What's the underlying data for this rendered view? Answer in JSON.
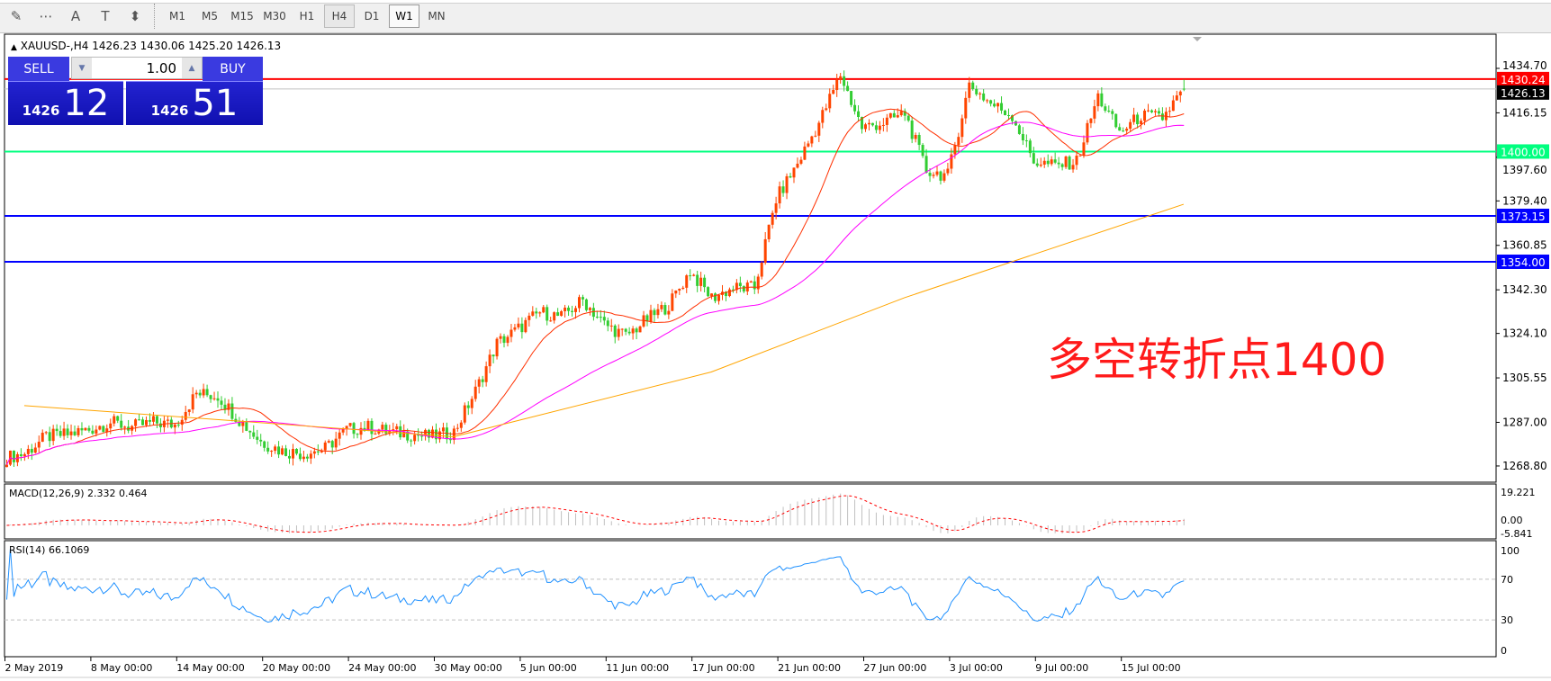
{
  "toolbar": {
    "icons": [
      "expert-advisor-icon",
      "period-separator-icon",
      "text-icon",
      "text-label-icon",
      "arrows-icon"
    ],
    "icon_glyphs": [
      "✎",
      "⋯",
      "A",
      "T",
      "⬍"
    ],
    "timeframes": [
      "M1",
      "M5",
      "M15",
      "M30",
      "H1",
      "H4",
      "D1",
      "W1",
      "MN"
    ],
    "active_timeframe": "H4"
  },
  "chart": {
    "header": "XAUUSD-,H4  1426.23 1430.06 1425.20 1426.13",
    "annotation": "多空转折点1400",
    "price_ticks": [
      "1434.70",
      "1416.15",
      "1397.60",
      "1379.40",
      "1360.85",
      "1342.30",
      "1324.10",
      "1305.55",
      "1287.00",
      "1268.80"
    ],
    "hlines": [
      {
        "price": 1430.24,
        "label": "1430.24",
        "color": "#ff0000"
      },
      {
        "price": 1426.13,
        "label": "1426.13",
        "color": "#c0c0c0",
        "label_bg": "#000000"
      },
      {
        "price": 1400.0,
        "label": "1400.00",
        "color": "#00ff7f"
      },
      {
        "price": 1373.15,
        "label": "1373.15",
        "color": "#0000ff"
      },
      {
        "price": 1354.0,
        "label": "1354.00",
        "color": "#0000ff"
      }
    ],
    "time_labels": [
      "2 May 2019",
      "8 May 00:00",
      "14 May 00:00",
      "20 May 00:00",
      "24 May 00:00",
      "30 May 00:00",
      "5 Jun 00:00",
      "11 Jun 00:00",
      "17 Jun 00:00",
      "21 Jun 00:00",
      "27 Jun 00:00",
      "3 Jul 00:00",
      "9 Jul 00:00",
      "15 Jul 00:00"
    ],
    "colors": {
      "bull": "#ff4500",
      "bear": "#32cd32",
      "ma_fast": "#ff3000",
      "ma_mid": "#ff00ff",
      "ma_slow": "#ffa500",
      "rsi": "#1e90ff",
      "macd_hist": "#c0c0c0",
      "macd_signal": "#ff0000"
    }
  },
  "trade_panel": {
    "sell_label": "SELL",
    "buy_label": "BUY",
    "lot": "1.00",
    "sell_small": "1426",
    "sell_big": "12",
    "buy_small": "1426",
    "buy_big": "51"
  },
  "macd": {
    "label": "MACD(12,26,9) 2.332 0.464",
    "ticks": [
      "19.221",
      "0.00",
      "-5.841"
    ]
  },
  "rsi": {
    "label": "RSI(14) 66.1069",
    "ticks": [
      "100",
      "70",
      "30",
      "0"
    ]
  },
  "chart_data": {
    "type": "candlestick",
    "symbol": "XAUUSD-",
    "timeframe": "H4",
    "ylim": [
      1268.8,
      1434.7
    ],
    "dates": [
      "2019-05-02",
      "2019-05-03",
      "2019-05-06",
      "2019-05-07",
      "2019-05-08",
      "2019-05-09",
      "2019-05-10",
      "2019-05-13",
      "2019-05-14",
      "2019-05-15",
      "2019-05-16",
      "2019-05-17",
      "2019-05-20",
      "2019-05-21",
      "2019-05-22",
      "2019-05-23",
      "2019-05-24",
      "2019-05-27",
      "2019-05-28",
      "2019-05-29",
      "2019-05-30",
      "2019-05-31",
      "2019-06-03",
      "2019-06-04",
      "2019-06-05",
      "2019-06-06",
      "2019-06-07",
      "2019-06-10",
      "2019-06-11",
      "2019-06-12",
      "2019-06-13",
      "2019-06-14",
      "2019-06-17",
      "2019-06-18",
      "2019-06-19",
      "2019-06-20",
      "2019-06-21",
      "2019-06-24",
      "2019-06-25",
      "2019-06-26",
      "2019-06-27",
      "2019-06-28",
      "2019-07-01",
      "2019-07-02",
      "2019-07-03",
      "2019-07-04",
      "2019-07-05",
      "2019-07-08",
      "2019-07-09",
      "2019-07-10",
      "2019-07-11",
      "2019-07-12",
      "2019-07-15",
      "2019-07-16",
      "2019-07-17"
    ],
    "close": [
      1274,
      1281,
      1282,
      1284,
      1287,
      1285,
      1287,
      1286,
      1299,
      1298,
      1288,
      1279,
      1275,
      1274,
      1276,
      1284,
      1285,
      1283,
      1282,
      1281,
      1283,
      1300,
      1320,
      1326,
      1333,
      1331,
      1338,
      1328,
      1323,
      1330,
      1336,
      1350,
      1339,
      1343,
      1343,
      1380,
      1395,
      1412,
      1432,
      1410,
      1412,
      1416,
      1392,
      1390,
      1428,
      1420,
      1415,
      1396,
      1394,
      1396,
      1423,
      1408,
      1415,
      1414,
      1426.13
    ],
    "last_bar": {
      "open": 1426.23,
      "high": 1430.06,
      "low": 1425.2,
      "close": 1426.13
    },
    "ma_slow": {
      "dates": [
        "2019-05-02",
        "2019-05-30",
        "2019-06-17",
        "2019-06-28",
        "2019-07-17"
      ],
      "values": [
        1294,
        1281,
        1308,
        1339,
        1378
      ]
    }
  }
}
